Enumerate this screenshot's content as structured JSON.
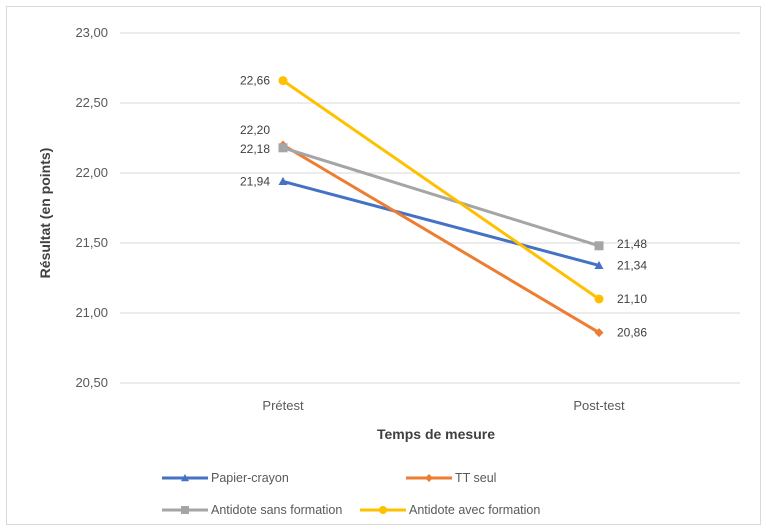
{
  "chart_data": {
    "type": "line",
    "categories": [
      "Prétest",
      "Post-test"
    ],
    "xlabel": "Temps de mesure",
    "ylabel": "Résultat (en points)",
    "ylim": [
      20.5,
      23.0
    ],
    "yticks": [
      "20,50",
      "21,00",
      "21,50",
      "22,00",
      "22,50",
      "23,00"
    ],
    "grid": true,
    "legend_position": "bottom",
    "series": [
      {
        "name": "Papier-crayon",
        "values": [
          21.94,
          21.34
        ],
        "labels": [
          "21,94",
          "21,34"
        ],
        "color": "#4472c4",
        "marker": "triangle"
      },
      {
        "name": "TT seul",
        "values": [
          22.2,
          20.86
        ],
        "labels": [
          "22,20",
          "20,86"
        ],
        "color": "#ed7d31",
        "marker": "diamond"
      },
      {
        "name": "Antidote sans formation",
        "values": [
          22.18,
          21.48
        ],
        "labels": [
          "22,18",
          "21,48"
        ],
        "color": "#a5a5a5",
        "marker": "square"
      },
      {
        "name": "Antidote avec formation",
        "values": [
          22.66,
          21.1
        ],
        "labels": [
          "22,66",
          "21,10"
        ],
        "color": "#ffc000",
        "marker": "circle"
      }
    ]
  }
}
